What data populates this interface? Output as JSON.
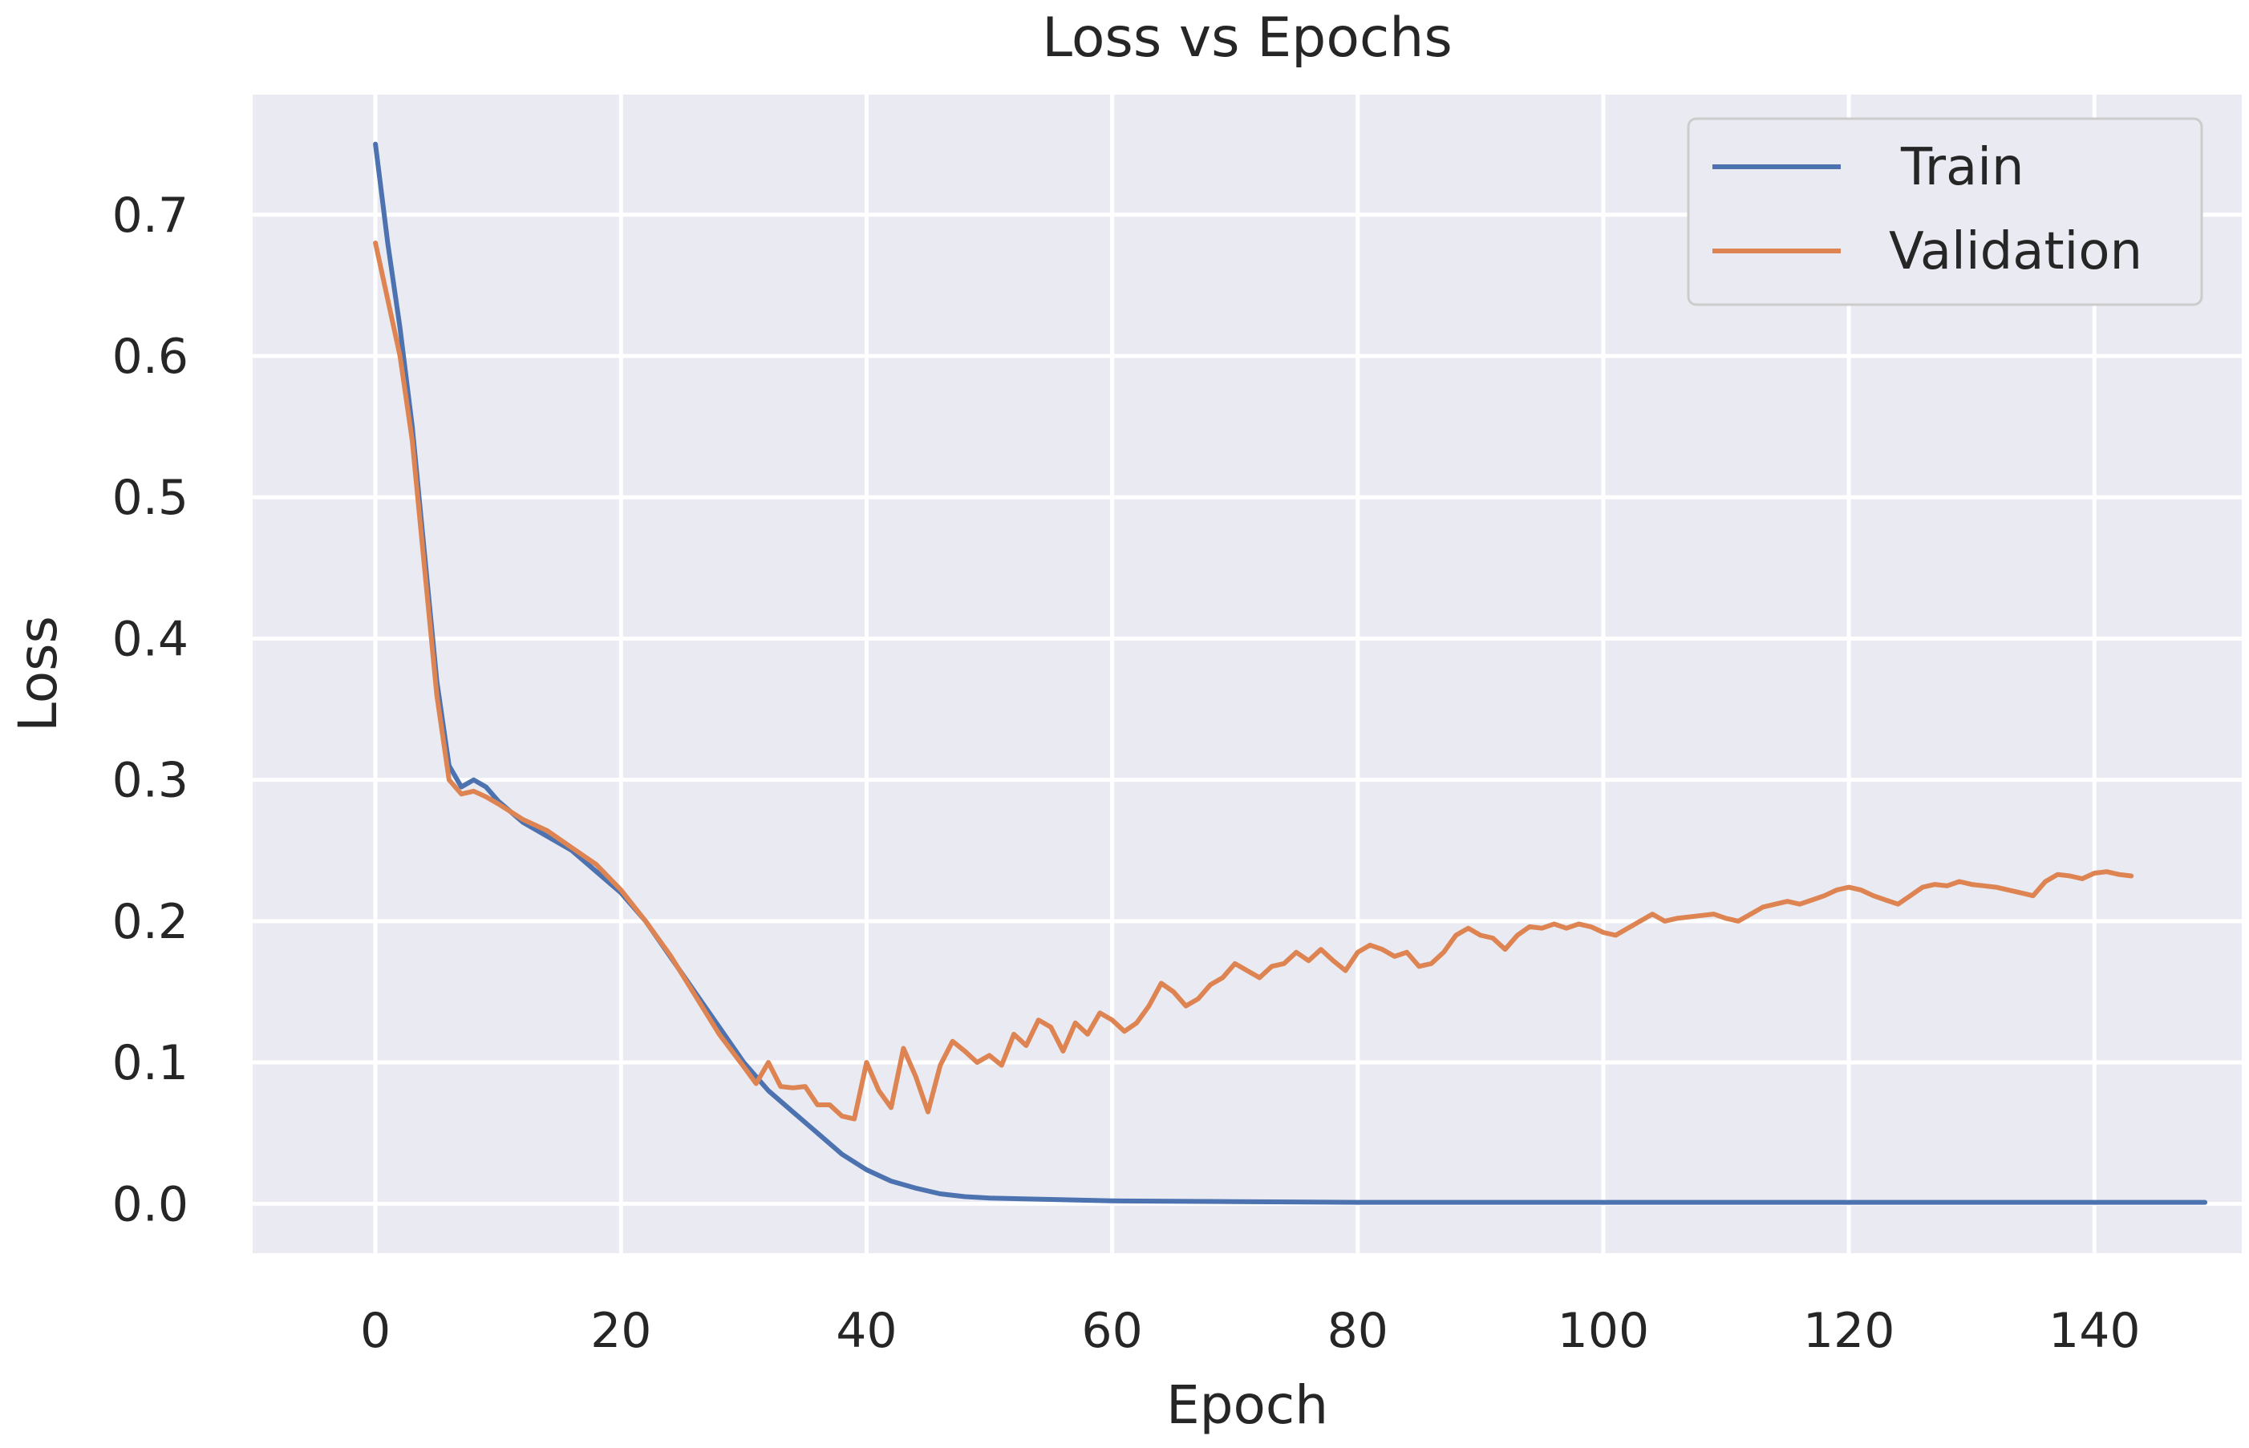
{
  "chart_data": {
    "type": "line",
    "title": "Loss vs Epochs",
    "xlabel": "Epoch",
    "ylabel": "Loss",
    "xlim": [
      -10,
      152
    ],
    "ylim": [
      -0.035,
      0.785
    ],
    "x_ticks": [
      0,
      20,
      40,
      60,
      80,
      100,
      120,
      140
    ],
    "y_ticks": [
      0.0,
      0.1,
      0.2,
      0.3,
      0.4,
      0.5,
      0.6,
      0.7
    ],
    "y_tick_labels": [
      "0.0",
      "0.1",
      "0.2",
      "0.3",
      "0.4",
      "0.5",
      "0.6",
      "0.7"
    ],
    "grid": true,
    "legend_position": "top-right",
    "series": [
      {
        "name": "Train",
        "color": "#4c72b0",
        "points": [
          [
            0,
            0.75
          ],
          [
            1,
            0.68
          ],
          [
            2,
            0.62
          ],
          [
            3,
            0.55
          ],
          [
            4,
            0.46
          ],
          [
            5,
            0.37
          ],
          [
            6,
            0.31
          ],
          [
            7,
            0.295
          ],
          [
            8,
            0.3
          ],
          [
            9,
            0.295
          ],
          [
            10,
            0.285
          ],
          [
            12,
            0.27
          ],
          [
            14,
            0.26
          ],
          [
            16,
            0.25
          ],
          [
            18,
            0.235
          ],
          [
            20,
            0.22
          ],
          [
            22,
            0.2
          ],
          [
            24,
            0.175
          ],
          [
            26,
            0.15
          ],
          [
            28,
            0.125
          ],
          [
            30,
            0.1
          ],
          [
            32,
            0.08
          ],
          [
            34,
            0.065
          ],
          [
            36,
            0.05
          ],
          [
            38,
            0.035
          ],
          [
            40,
            0.024
          ],
          [
            42,
            0.016
          ],
          [
            44,
            0.011
          ],
          [
            46,
            0.007
          ],
          [
            48,
            0.005
          ],
          [
            50,
            0.004
          ],
          [
            55,
            0.003
          ],
          [
            60,
            0.002
          ],
          [
            70,
            0.0015
          ],
          [
            80,
            0.001
          ],
          [
            100,
            0.001
          ],
          [
            120,
            0.001
          ],
          [
            140,
            0.001
          ],
          [
            149,
            0.001
          ]
        ]
      },
      {
        "name": "Validation",
        "color": "#dd8452",
        "points": [
          [
            0,
            0.68
          ],
          [
            1,
            0.64
          ],
          [
            2,
            0.6
          ],
          [
            3,
            0.54
          ],
          [
            4,
            0.45
          ],
          [
            5,
            0.36
          ],
          [
            6,
            0.3
          ],
          [
            7,
            0.29
          ],
          [
            8,
            0.292
          ],
          [
            9,
            0.288
          ],
          [
            10,
            0.283
          ],
          [
            12,
            0.272
          ],
          [
            14,
            0.264
          ],
          [
            16,
            0.252
          ],
          [
            18,
            0.24
          ],
          [
            20,
            0.222
          ],
          [
            22,
            0.2
          ],
          [
            24,
            0.176
          ],
          [
            26,
            0.148
          ],
          [
            28,
            0.12
          ],
          [
            30,
            0.097
          ],
          [
            31,
            0.085
          ],
          [
            32,
            0.1
          ],
          [
            33,
            0.083
          ],
          [
            34,
            0.082
          ],
          [
            35,
            0.083
          ],
          [
            36,
            0.07
          ],
          [
            37,
            0.07
          ],
          [
            38,
            0.062
          ],
          [
            39,
            0.06
          ],
          [
            40,
            0.1
          ],
          [
            41,
            0.08
          ],
          [
            42,
            0.068
          ],
          [
            43,
            0.11
          ],
          [
            44,
            0.09
          ],
          [
            45,
            0.065
          ],
          [
            46,
            0.098
          ],
          [
            47,
            0.115
          ],
          [
            48,
            0.108
          ],
          [
            49,
            0.1
          ],
          [
            50,
            0.105
          ],
          [
            51,
            0.098
          ],
          [
            52,
            0.12
          ],
          [
            53,
            0.112
          ],
          [
            54,
            0.13
          ],
          [
            55,
            0.125
          ],
          [
            56,
            0.108
          ],
          [
            57,
            0.128
          ],
          [
            58,
            0.12
          ],
          [
            59,
            0.135
          ],
          [
            60,
            0.13
          ],
          [
            61,
            0.122
          ],
          [
            62,
            0.128
          ],
          [
            63,
            0.14
          ],
          [
            64,
            0.156
          ],
          [
            65,
            0.15
          ],
          [
            66,
            0.14
          ],
          [
            67,
            0.145
          ],
          [
            68,
            0.155
          ],
          [
            69,
            0.16
          ],
          [
            70,
            0.17
          ],
          [
            71,
            0.165
          ],
          [
            72,
            0.16
          ],
          [
            73,
            0.168
          ],
          [
            74,
            0.17
          ],
          [
            75,
            0.178
          ],
          [
            76,
            0.172
          ],
          [
            77,
            0.18
          ],
          [
            78,
            0.172
          ],
          [
            79,
            0.165
          ],
          [
            80,
            0.178
          ],
          [
            81,
            0.183
          ],
          [
            82,
            0.18
          ],
          [
            83,
            0.175
          ],
          [
            84,
            0.178
          ],
          [
            85,
            0.168
          ],
          [
            86,
            0.17
          ],
          [
            87,
            0.178
          ],
          [
            88,
            0.19
          ],
          [
            89,
            0.195
          ],
          [
            90,
            0.19
          ],
          [
            91,
            0.188
          ],
          [
            92,
            0.18
          ],
          [
            93,
            0.19
          ],
          [
            94,
            0.196
          ],
          [
            95,
            0.195
          ],
          [
            96,
            0.198
          ],
          [
            97,
            0.195
          ],
          [
            98,
            0.198
          ],
          [
            99,
            0.196
          ],
          [
            100,
            0.192
          ],
          [
            101,
            0.19
          ],
          [
            102,
            0.195
          ],
          [
            103,
            0.2
          ],
          [
            104,
            0.205
          ],
          [
            105,
            0.2
          ],
          [
            106,
            0.202
          ],
          [
            107,
            0.203
          ],
          [
            108,
            0.204
          ],
          [
            109,
            0.205
          ],
          [
            110,
            0.202
          ],
          [
            111,
            0.2
          ],
          [
            112,
            0.205
          ],
          [
            113,
            0.21
          ],
          [
            114,
            0.212
          ],
          [
            115,
            0.214
          ],
          [
            116,
            0.212
          ],
          [
            117,
            0.215
          ],
          [
            118,
            0.218
          ],
          [
            119,
            0.222
          ],
          [
            120,
            0.224
          ],
          [
            121,
            0.222
          ],
          [
            122,
            0.218
          ],
          [
            123,
            0.215
          ],
          [
            124,
            0.212
          ],
          [
            125,
            0.218
          ],
          [
            126,
            0.224
          ],
          [
            127,
            0.226
          ],
          [
            128,
            0.225
          ],
          [
            129,
            0.228
          ],
          [
            130,
            0.226
          ],
          [
            131,
            0.225
          ],
          [
            132,
            0.224
          ],
          [
            133,
            0.222
          ],
          [
            134,
            0.22
          ],
          [
            135,
            0.218
          ],
          [
            136,
            0.228
          ],
          [
            137,
            0.233
          ],
          [
            138,
            0.232
          ],
          [
            139,
            0.23
          ],
          [
            140,
            0.234
          ],
          [
            141,
            0.235
          ],
          [
            142,
            0.233
          ],
          [
            143,
            0.232
          ]
        ]
      }
    ]
  }
}
